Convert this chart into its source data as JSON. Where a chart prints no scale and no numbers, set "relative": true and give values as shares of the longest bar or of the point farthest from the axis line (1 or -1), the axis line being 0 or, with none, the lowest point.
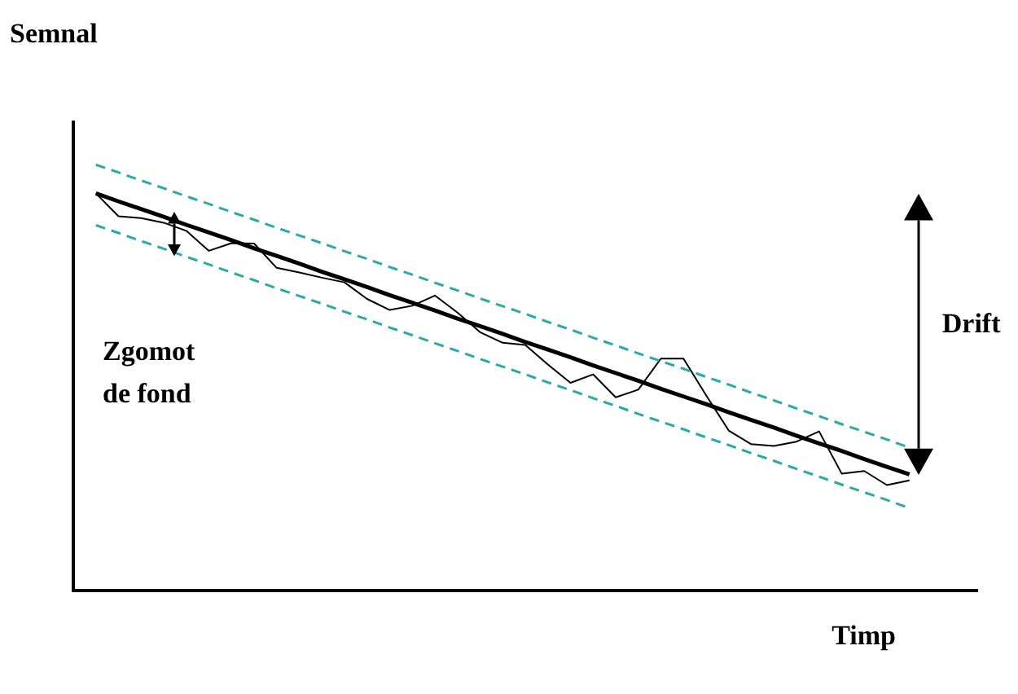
{
  "chart_data": {
    "type": "line",
    "relative": true,
    "xlabel": "Timp",
    "ylabel": "Semnal",
    "categories": [
      null,
      null,
      null,
      null,
      null,
      null,
      null,
      null,
      null,
      null,
      null,
      null,
      null,
      null,
      null,
      null,
      null,
      null,
      null,
      null,
      null,
      null,
      null,
      null,
      null,
      null,
      null,
      null,
      null,
      null,
      null,
      null,
      null,
      null,
      null,
      null,
      null,
      null,
      null,
      null,
      null
    ],
    "series": [
      {
        "color": "#2aa9a9",
        "line_style": "dashed",
        "values": [
          null,
          1,
          0.982,
          0.963,
          0.945,
          0.926,
          0.908,
          0.889,
          0.871,
          0.852,
          0.834,
          0.816,
          0.797,
          0.779,
          0.76,
          0.742,
          0.723,
          0.705,
          0.686,
          0.668,
          0.65,
          0.631,
          0.613,
          0.594,
          0.576,
          0.557,
          0.539,
          0.521,
          0.502,
          0.484,
          0.465,
          0.447,
          0.428,
          0.41,
          0.391,
          0.373,
          0.355,
          0.336,
          null,
          null,
          null
        ]
      },
      {
        "color": "#2aa9a9",
        "line_style": "dashed",
        "values": [
          null,
          0.858,
          0.84,
          0.821,
          0.803,
          0.784,
          0.766,
          0.747,
          0.729,
          0.71,
          0.692,
          0.674,
          0.655,
          0.637,
          0.618,
          0.6,
          0.581,
          0.563,
          0.544,
          0.526,
          0.508,
          0.489,
          0.471,
          0.452,
          0.434,
          0.415,
          0.397,
          0.379,
          0.36,
          0.342,
          0.323,
          0.305,
          0.286,
          0.268,
          0.249,
          0.231,
          0.213,
          0.194,
          null,
          null,
          null
        ]
      },
      {
        "color": "#000000",
        "line_style": "solid",
        "values": [
          null,
          0.933,
          0.879,
          0.875,
          0.864,
          0.845,
          0.798,
          0.816,
          0.815,
          0.758,
          0.747,
          0.735,
          0.724,
          0.685,
          0.659,
          0.669,
          0.693,
          0.653,
          0.607,
          0.582,
          0.577,
          0.531,
          0.488,
          0.508,
          0.454,
          0.472,
          0.545,
          0.545,
          0.459,
          0.376,
          0.344,
          0.34,
          0.35,
          0.374,
          0.275,
          0.281,
          0.248,
          0.259,
          null,
          null,
          null
        ]
      },
      {
        "color": "#000000",
        "line_style": "solid",
        "values": [
          null,
          0.933,
          0.914,
          0.896,
          0.878,
          0.859,
          0.841,
          0.823,
          0.804,
          0.786,
          0.768,
          0.749,
          0.731,
          0.713,
          0.694,
          0.676,
          0.658,
          0.639,
          0.621,
          0.603,
          0.584,
          0.566,
          0.548,
          0.529,
          0.511,
          0.493,
          0.474,
          0.456,
          0.438,
          0.419,
          0.401,
          0.383,
          0.364,
          0.346,
          0.328,
          0.309,
          0.291,
          0.273,
          null,
          null,
          null
        ]
      }
    ],
    "annotations": [
      "Zgomot de fond",
      "Drift"
    ],
    "grid": false,
    "legend": false,
    "marker": "none"
  }
}
